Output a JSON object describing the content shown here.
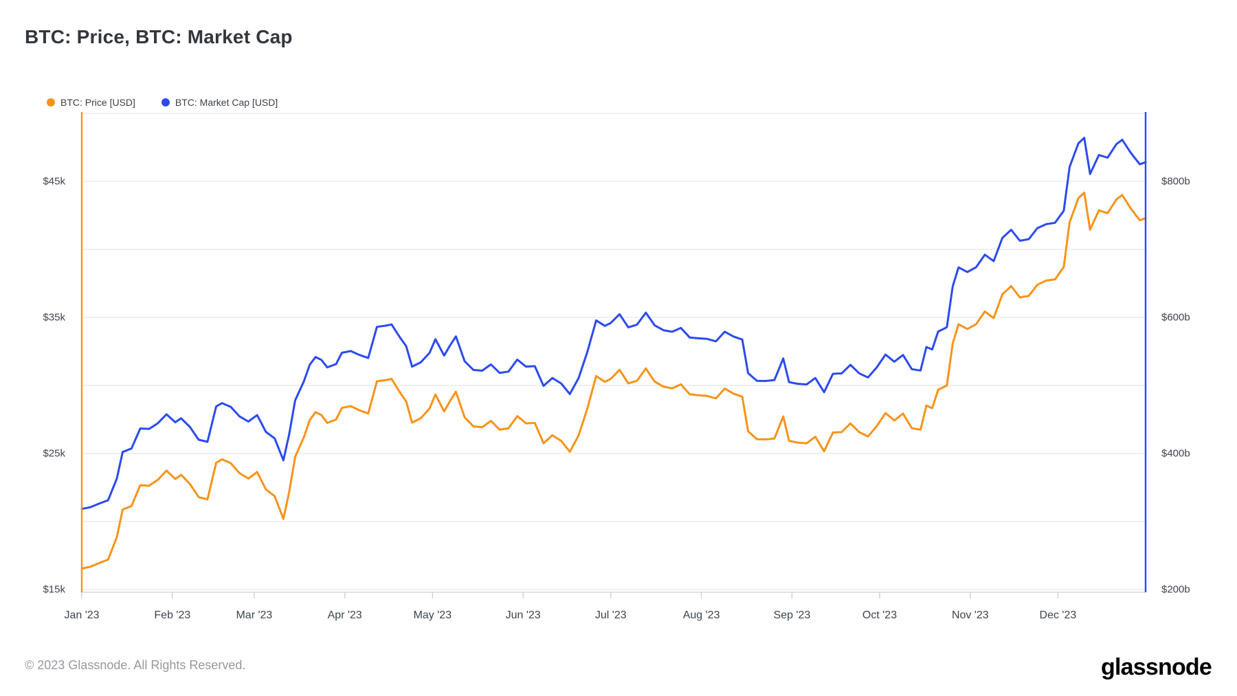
{
  "title": "BTC: Price, BTC: Market Cap",
  "legend": [
    {
      "label": "BTC: Price [USD]",
      "color": "#F7931A"
    },
    {
      "label": "BTC: Market Cap [USD]",
      "color": "#2B4AF0"
    }
  ],
  "footer": {
    "copyright": "© 2023 Glassnode. All Rights Reserved.",
    "brand": "glassnode"
  },
  "colors": {
    "price_line": "#F7931A",
    "marketcap_line": "#2B4AF0",
    "gridline": "#ebebeb",
    "axis_line": "#d9d9d9",
    "tick_mark": "#d0d0d0"
  },
  "chart_data": {
    "type": "line",
    "title": "BTC: Price, BTC: Market Cap",
    "x_unit": "day_of_year_2023",
    "x_tick_labels": [
      "Jan '23",
      "Feb '23",
      "Mar '23",
      "Apr '23",
      "May '23",
      "Jun '23",
      "Jul '23",
      "Aug '23",
      "Sep '23",
      "Oct '23",
      "Nov '23",
      "Dec '23"
    ],
    "month_start_days": [
      0,
      31,
      59,
      90,
      120,
      151,
      181,
      212,
      243,
      273,
      304,
      334
    ],
    "grid": "horizontal-only",
    "legend_position": "top-left",
    "left_axis": {
      "title": "BTC price in USD",
      "tick_labels": [
        "$45k",
        "$35k",
        "$25k",
        "$15k"
      ],
      "tick_values_k": [
        45,
        35,
        25,
        15
      ],
      "gridline_values_k": [
        15,
        20,
        25,
        30,
        35,
        40,
        45,
        50
      ],
      "range_k": [
        14.8,
        50.1
      ]
    },
    "right_axis": {
      "title": "BTC market cap in USD billions",
      "tick_labels": [
        "$800b",
        "$600b",
        "$400b",
        "$200b"
      ],
      "tick_values_b": [
        800,
        600,
        400,
        200
      ],
      "range_b": [
        196,
        902
      ]
    },
    "x_days": [
      0,
      3,
      6,
      9,
      12,
      14,
      17,
      20,
      23,
      26,
      29,
      32,
      34,
      37,
      40,
      43,
      46,
      48,
      51,
      54,
      57,
      60,
      63,
      66,
      69,
      71,
      73,
      76,
      78,
      80,
      82,
      84,
      87,
      89,
      92,
      95,
      98,
      101,
      104,
      106,
      109,
      111,
      113,
      116,
      119,
      121,
      124,
      126,
      128,
      131,
      134,
      137,
      140,
      143,
      146,
      149,
      152,
      155,
      158,
      161,
      164,
      167,
      170,
      173,
      176,
      179,
      181,
      184,
      187,
      190,
      193,
      196,
      199,
      202,
      205,
      208,
      211,
      214,
      217,
      220,
      223,
      226,
      228,
      231,
      234,
      237,
      240,
      242,
      245,
      248,
      251,
      254,
      257,
      260,
      263,
      266,
      269,
      272,
      275,
      278,
      281,
      284,
      287,
      289,
      291,
      293,
      296,
      298,
      300,
      303,
      306,
      309,
      312,
      315,
      318,
      321,
      324,
      327,
      330,
      333,
      336,
      338,
      341,
      343,
      345,
      348,
      351,
      354,
      356,
      359,
      362,
      364
    ],
    "series": [
      {
        "name": "BTC: Price [USD]",
        "axis": "left",
        "unit": "USD thousands",
        "color": "#F7931A",
        "values": [
          16.54,
          16.68,
          16.95,
          17.2,
          18.85,
          20.88,
          21.14,
          22.67,
          22.63,
          23.06,
          23.74,
          23.13,
          23.43,
          22.76,
          21.79,
          21.63,
          24.32,
          24.57,
          24.28,
          23.55,
          23.16,
          23.64,
          22.36,
          21.86,
          20.19,
          22.2,
          24.75,
          26.2,
          27.45,
          28.04,
          27.82,
          27.25,
          27.49,
          28.35,
          28.48,
          28.18,
          27.94,
          30.31,
          30.39,
          30.48,
          29.45,
          28.82,
          27.27,
          27.59,
          28.31,
          29.34,
          28.09,
          28.85,
          29.54,
          27.66,
          26.99,
          26.93,
          27.4,
          26.75,
          26.85,
          27.75,
          27.22,
          27.25,
          25.75,
          26.34,
          25.93,
          25.12,
          26.33,
          28.31,
          30.69,
          30.27,
          30.48,
          31.15,
          30.15,
          30.35,
          31.25,
          30.29,
          29.91,
          29.79,
          30.08,
          29.35,
          29.28,
          29.23,
          29.05,
          29.77,
          29.4,
          29.17,
          26.63,
          26.05,
          26.03,
          26.1,
          27.72,
          25.93,
          25.8,
          25.75,
          26.23,
          25.16,
          26.54,
          26.57,
          27.21,
          26.57,
          26.25,
          27.0,
          27.97,
          27.43,
          27.93,
          26.86,
          26.75,
          28.52,
          28.33,
          29.68,
          30.0,
          33.08,
          34.5,
          34.15,
          34.5,
          35.44,
          34.95,
          36.7,
          37.3,
          36.47,
          36.58,
          37.41,
          37.71,
          37.8,
          38.7,
          41.99,
          43.76,
          44.17,
          41.45,
          42.87,
          42.66,
          43.67,
          44.0,
          42.99,
          42.14,
          42.3
        ]
      },
      {
        "name": "BTC: Market Cap [USD]",
        "axis": "right",
        "unit": "USD billions",
        "color": "#2B4AF0",
        "values": [
          318.4,
          321.1,
          326.4,
          331.2,
          363.1,
          402.2,
          407.3,
          436.8,
          436.1,
          444.4,
          457.6,
          445.9,
          451.7,
          438.9,
          420.2,
          417.2,
          469.2,
          474.1,
          468.5,
          454.5,
          447.0,
          456.4,
          431.7,
          422.1,
          389.9,
          428.8,
          478.1,
          506.2,
          530.4,
          541.8,
          537.6,
          526.6,
          531.4,
          548.0,
          550.6,
          544.9,
          540.3,
          586.2,
          587.9,
          589.7,
          569.8,
          557.7,
          527.7,
          534.0,
          548.0,
          568.0,
          543.9,
          558.7,
          572.1,
          535.7,
          522.8,
          521.7,
          530.9,
          518.4,
          520.4,
          538.0,
          527.7,
          528.4,
          499.4,
          510.9,
          503.0,
          487.4,
          510.9,
          549.4,
          595.7,
          587.6,
          591.8,
          604.8,
          585.5,
          589.5,
          607.0,
          588.5,
          581.2,
          578.9,
          584.6,
          570.5,
          569.3,
          568.4,
          564.9,
          579.0,
          571.9,
          567.5,
          518.1,
          506.9,
          506.6,
          508.0,
          539.7,
          504.9,
          502.4,
          501.5,
          510.9,
          490.1,
          517.1,
          517.8,
          530.3,
          517.9,
          511.7,
          526.4,
          545.4,
          535.0,
          544.8,
          524.0,
          521.9,
          556.5,
          552.9,
          579.2,
          585.6,
          645.7,
          673.5,
          666.8,
          673.7,
          692.2,
          682.7,
          717.0,
          728.8,
          712.7,
          714.9,
          731.3,
          737.2,
          739.1,
          756.8,
          821.2,
          855.9,
          864.0,
          810.9,
          838.8,
          834.8,
          854.7,
          861.2,
          841.6,
          825.1,
          828.2
        ]
      }
    ]
  }
}
